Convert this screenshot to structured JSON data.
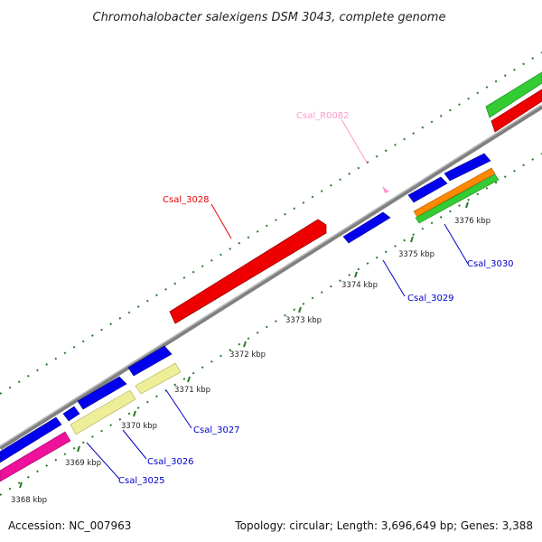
{
  "title": "Chromohalobacter salexigens DSM 3043, complete genome",
  "footer": {
    "accession": "Accession: NC_007963",
    "summary": "Topology: circular; Length: 3,696,649 bp; Genes: 3,388"
  },
  "colors": {
    "backbone": "#808080",
    "cds": "#0000ee",
    "cds_reverse": "#0000ee",
    "rna": "#ff99cc",
    "red_gene": "#ee0000",
    "green_track": "#33cc33",
    "orange_track": "#ff8800",
    "yellow_track": "#eeee99",
    "magenta_track": "#ee1199",
    "tick": "#2a7a2a"
  },
  "ticks": [
    {
      "label": "3368 kbp"
    },
    {
      "label": "3369 kbp"
    },
    {
      "label": "3370 kbp"
    },
    {
      "label": "3371 kbp"
    },
    {
      "label": "3372 kbp"
    },
    {
      "label": "3373 kbp"
    },
    {
      "label": "3374 kbp"
    },
    {
      "label": "3375 kbp"
    },
    {
      "label": "3376 kbp"
    }
  ],
  "gene_labels": [
    {
      "name": "Csal_R0082",
      "color": "#ff99cc"
    },
    {
      "name": "Csal_3028",
      "color": "#ee0000"
    },
    {
      "name": "Csal_3030",
      "color": "#0000cc"
    },
    {
      "name": "Csal_3029",
      "color": "#0000cc"
    },
    {
      "name": "Csal_3027",
      "color": "#0000cc"
    },
    {
      "name": "Csal_3026",
      "color": "#0000cc"
    },
    {
      "name": "Csal_3025",
      "color": "#0000cc"
    }
  ]
}
